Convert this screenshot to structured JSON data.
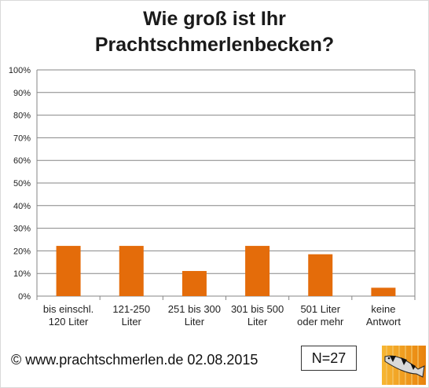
{
  "chart_data": {
    "type": "bar",
    "title_lines": [
      "Wie groß ist Ihr",
      "Prachtschmerlenbecken?"
    ],
    "categories": [
      [
        "bis einschl.",
        "120 Liter"
      ],
      [
        "121-250",
        "Liter"
      ],
      [
        "251 bis 300",
        "Liter"
      ],
      [
        "301 bis 500",
        "Liter"
      ],
      [
        "501 Liter",
        "oder mehr"
      ],
      [
        "keine",
        "Antwort"
      ]
    ],
    "values": [
      22.2,
      22.2,
      11.1,
      22.2,
      18.5,
      3.7
    ],
    "ylim": [
      0,
      100
    ],
    "yticks": [
      "0%",
      "10%",
      "20%",
      "30%",
      "40%",
      "50%",
      "60%",
      "70%",
      "80%",
      "90%",
      "100%"
    ],
    "grid": true,
    "bar_color": "#E46C0A"
  },
  "footer": {
    "copyright": "© www.prachtschmerlen.de 02.08.2015",
    "sample_size": "N=27"
  },
  "logo_icon": "fish-logo-icon"
}
